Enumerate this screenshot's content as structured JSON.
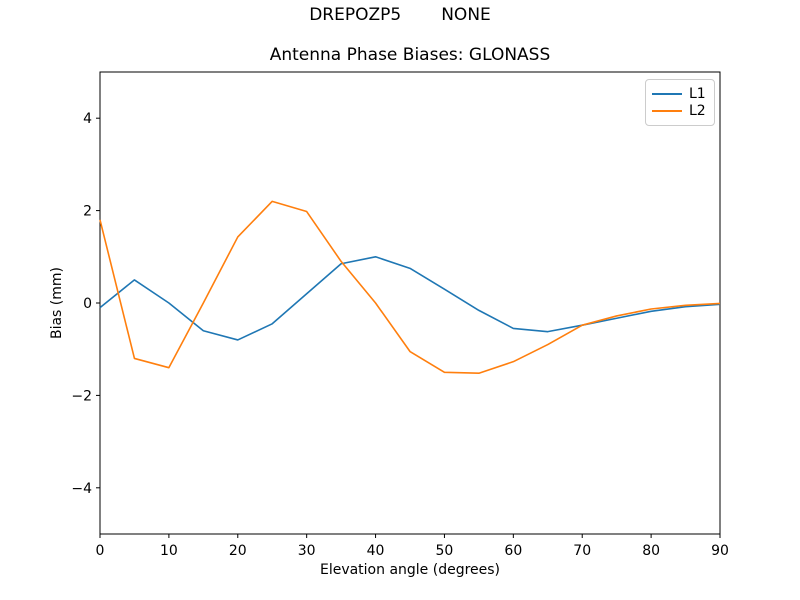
{
  "suptitle": {
    "left": "DREPOZP5",
    "right": "NONE"
  },
  "chart_data": {
    "type": "line",
    "title": "Antenna Phase Biases: GLONASS",
    "xlabel": "Elevation angle (degrees)",
    "ylabel": "Bias (mm)",
    "xlim": [
      0,
      90
    ],
    "ylim": [
      -5,
      5
    ],
    "grid": false,
    "legend_position": "upper right",
    "xticks": [
      0,
      10,
      20,
      30,
      40,
      50,
      60,
      70,
      80,
      90
    ],
    "yticks": [
      {
        "value": 4,
        "label": "4"
      },
      {
        "value": 2,
        "label": "2"
      },
      {
        "value": 0,
        "label": "0"
      },
      {
        "value": -2,
        "label": "−2"
      },
      {
        "value": -4,
        "label": "−4"
      }
    ],
    "x": [
      0,
      5,
      10,
      15,
      20,
      25,
      30,
      35,
      40,
      45,
      50,
      55,
      60,
      65,
      70,
      75,
      80,
      85,
      90
    ],
    "series": [
      {
        "name": "L1",
        "color": "#1f77b4",
        "values": [
          -0.1,
          0.5,
          0.0,
          -0.6,
          -0.8,
          -0.45,
          0.2,
          0.85,
          1.0,
          0.75,
          0.3,
          -0.16,
          -0.55,
          -0.62,
          -0.48,
          -0.33,
          -0.18,
          -0.08,
          -0.03
        ]
      },
      {
        "name": "L2",
        "color": "#ff7f0e",
        "values": [
          1.8,
          -1.2,
          -1.4,
          0.0,
          1.43,
          2.2,
          1.98,
          0.9,
          0.0,
          -1.05,
          -1.5,
          -1.52,
          -1.27,
          -0.9,
          -0.48,
          -0.28,
          -0.13,
          -0.05,
          -0.01
        ]
      }
    ]
  }
}
